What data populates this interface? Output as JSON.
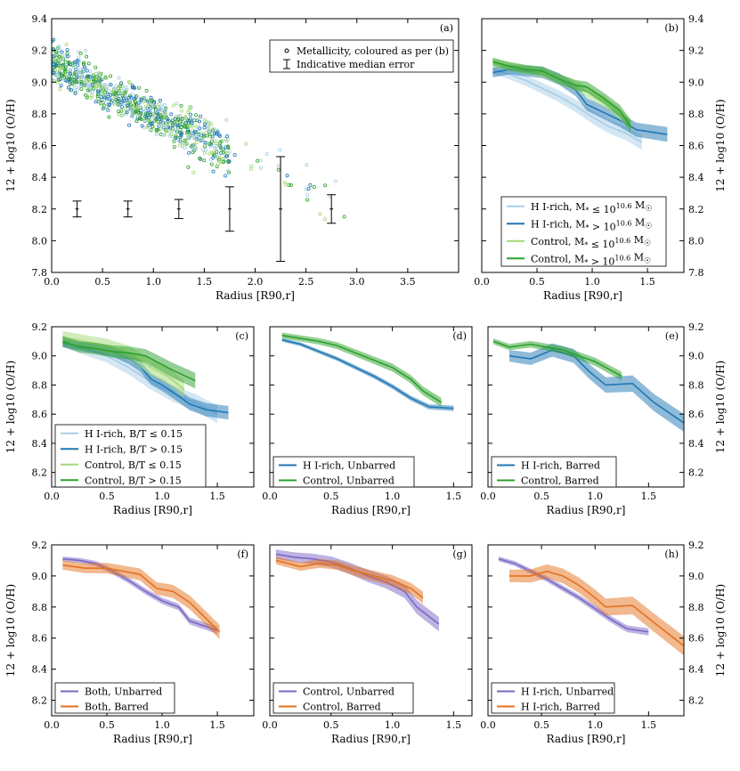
{
  "figure": {
    "title": ""
  },
  "colors": {
    "hi_low": "#a8cde8",
    "hi_high": "#1f77b4",
    "ctrl_low": "#a3d977",
    "ctrl_high": "#2ca02c",
    "purple": "#7b68c6",
    "orange": "#e5711e"
  },
  "chart_data": [
    {
      "id": "a",
      "label": "(a)",
      "type": "scatter",
      "xlabel": "Radius [R90,r]",
      "ylabel": "12 + log10 (O/H)",
      "xlim": [
        0,
        4.0
      ],
      "ylim": [
        7.8,
        9.4
      ],
      "xticks": [
        "0.0",
        "0.5",
        "1.0",
        "1.5",
        "2.0",
        "2.5",
        "3.0",
        "3.5"
      ],
      "yticks": [
        "7.8",
        "8.0",
        "8.2",
        "8.4",
        "8.6",
        "8.8",
        "9.0",
        "9.2",
        "9.4"
      ],
      "legend": [
        "Metallicity, coloured as per (b)",
        "Indicative median error"
      ],
      "errorbars": [
        {
          "x": 0.25,
          "y": 8.2,
          "err": 0.05
        },
        {
          "x": 0.75,
          "y": 8.2,
          "err": 0.05
        },
        {
          "x": 1.25,
          "y": 8.2,
          "err": 0.06
        },
        {
          "x": 1.75,
          "y": 8.2,
          "err": 0.14
        },
        {
          "x": 2.25,
          "y": 8.2,
          "err": 0.33
        },
        {
          "x": 2.75,
          "y": 8.2,
          "err": 0.09
        }
      ]
    },
    {
      "id": "b",
      "label": "(b)",
      "type": "line",
      "xlabel": "Radius [R90,r]",
      "ylabel": "12 + log10 (O/H)",
      "xlim": [
        0,
        1.83
      ],
      "ylim": [
        7.8,
        9.4
      ],
      "xticks": [
        "0.0",
        "0.5",
        "1.0",
        "1.5"
      ],
      "yticks": [
        "7.8",
        "8.0",
        "8.2",
        "8.4",
        "8.6",
        "8.8",
        "9.0",
        "9.2",
        "9.4"
      ],
      "series": [
        {
          "name": "H I-rich, M* ≤ 10^10.6 M☉",
          "color": "hi_low",
          "x": [
            0.1,
            0.25,
            0.4,
            0.55,
            0.7,
            0.85,
            1.0,
            1.15,
            1.3,
            1.45
          ],
          "y": [
            9.08,
            9.05,
            9.01,
            8.96,
            8.91,
            8.85,
            8.78,
            8.72,
            8.68,
            8.62
          ],
          "err": 0.03
        },
        {
          "name": "H I-rich, M* > 10^10.6 M☉",
          "color": "hi_high",
          "x": [
            0.1,
            0.25,
            0.4,
            0.55,
            0.7,
            0.85,
            0.95,
            1.1,
            1.25,
            1.4,
            1.68
          ],
          "y": [
            9.06,
            9.08,
            9.07,
            9.06,
            9.02,
            8.95,
            8.86,
            8.81,
            8.76,
            8.7,
            8.67
          ],
          "err": 0.03
        },
        {
          "name": "Control, M* ≤ 10^10.6 M☉",
          "color": "ctrl_low",
          "x": [
            0.1,
            0.25,
            0.4,
            0.55,
            0.7,
            0.85,
            0.95,
            1.1,
            1.25,
            1.35
          ],
          "y": [
            9.12,
            9.1,
            9.08,
            9.06,
            9.02,
            8.98,
            8.94,
            8.88,
            8.8,
            8.73
          ],
          "err": 0.025
        },
        {
          "name": "Control, M* > 10^10.6 M☉",
          "color": "ctrl_high",
          "x": [
            0.1,
            0.25,
            0.4,
            0.55,
            0.7,
            0.85,
            0.95,
            1.1,
            1.25,
            1.35
          ],
          "y": [
            9.13,
            9.1,
            9.08,
            9.07,
            9.02,
            8.98,
            8.97,
            8.9,
            8.82,
            8.72
          ],
          "err": 0.025
        }
      ]
    },
    {
      "id": "c",
      "label": "(c)",
      "type": "line",
      "xlabel": "Radius [R90,r]",
      "ylabel": "12 + log10 (O/H)",
      "xlim": [
        0,
        1.83
      ],
      "ylim": [
        8.1,
        9.2
      ],
      "xticks": [
        "0.0",
        "0.5",
        "1.0",
        "1.5"
      ],
      "yticks": [
        "8.2",
        "8.4",
        "8.6",
        "8.8",
        "9.0",
        "9.2"
      ],
      "series": [
        {
          "name": "H I-rich, B/T ≤ 0.15",
          "color": "hi_low",
          "x": [
            0.1,
            0.3,
            0.5,
            0.7,
            0.9,
            1.1,
            1.3,
            1.5
          ],
          "y": [
            9.1,
            9.05,
            9.0,
            8.92,
            8.82,
            8.74,
            8.68,
            8.6
          ],
          "err": 0.04
        },
        {
          "name": "H I-rich, B/T > 0.15",
          "color": "hi_high",
          "x": [
            0.1,
            0.25,
            0.4,
            0.55,
            0.7,
            0.8,
            0.9,
            1.0,
            1.1,
            1.25,
            1.4,
            1.6
          ],
          "y": [
            9.09,
            9.07,
            9.05,
            9.03,
            8.98,
            8.93,
            8.84,
            8.8,
            8.75,
            8.67,
            8.63,
            8.61
          ],
          "err": 0.03
        },
        {
          "name": "Control, B/T ≤ 0.15",
          "color": "ctrl_low",
          "x": [
            0.1,
            0.3,
            0.5,
            0.7,
            0.9,
            1.05,
            1.2
          ],
          "y": [
            9.13,
            9.1,
            9.07,
            9.02,
            8.92,
            8.86,
            8.77
          ],
          "err": 0.04
        },
        {
          "name": "Control, B/T > 0.15",
          "color": "ctrl_high",
          "x": [
            0.1,
            0.25,
            0.4,
            0.55,
            0.7,
            0.85,
            0.95,
            1.1,
            1.3
          ],
          "y": [
            9.1,
            9.06,
            9.05,
            9.03,
            9.02,
            9.0,
            8.96,
            8.9,
            8.83
          ],
          "err": 0.035
        }
      ]
    },
    {
      "id": "d",
      "label": "(d)",
      "type": "line",
      "xlabel": "Radius [R90,r]",
      "ylabel": "",
      "xlim": [
        0,
        1.65
      ],
      "ylim": [
        8.1,
        9.2
      ],
      "xticks": [
        "0.0",
        "0.5",
        "1.0",
        "1.5"
      ],
      "yticks": [],
      "series": [
        {
          "name": "H I-rich, Unbarred",
          "color": "hi_high",
          "x": [
            0.1,
            0.25,
            0.4,
            0.55,
            0.7,
            0.85,
            1.0,
            1.15,
            1.3,
            1.5
          ],
          "y": [
            9.11,
            9.08,
            9.03,
            8.98,
            8.92,
            8.86,
            8.79,
            8.71,
            8.65,
            8.64
          ],
          "err": 0.012
        },
        {
          "name": "Control, Unbarred",
          "color": "ctrl_high",
          "x": [
            0.1,
            0.25,
            0.4,
            0.55,
            0.7,
            0.85,
            1.0,
            1.15,
            1.25,
            1.4
          ],
          "y": [
            9.14,
            9.12,
            9.1,
            9.07,
            9.02,
            8.97,
            8.92,
            8.84,
            8.76,
            8.68
          ],
          "err": 0.02
        }
      ]
    },
    {
      "id": "e",
      "label": "(e)",
      "type": "line",
      "xlabel": "Radius [R90,r]",
      "ylabel": "12 + log10 (O/H)",
      "xlim": [
        0,
        1.83
      ],
      "ylim": [
        8.1,
        9.2
      ],
      "xticks": [
        "0.0",
        "0.5",
        "1.0",
        "1.5"
      ],
      "yticks": [
        "8.2",
        "8.4",
        "8.6",
        "8.8",
        "9.0",
        "9.2"
      ],
      "series": [
        {
          "name": "H I-rich, Barred",
          "color": "hi_high",
          "x": [
            0.2,
            0.4,
            0.6,
            0.8,
            0.95,
            1.1,
            1.35,
            1.55,
            1.83
          ],
          "y": [
            9.0,
            8.98,
            9.04,
            9.0,
            8.89,
            8.8,
            8.81,
            8.68,
            8.54
          ],
          "err": 0.04
        },
        {
          "name": "Control, Barred",
          "color": "ctrl_high",
          "x": [
            0.05,
            0.2,
            0.4,
            0.55,
            0.7,
            0.85,
            1.0,
            1.15,
            1.25
          ],
          "y": [
            9.1,
            9.06,
            9.08,
            9.06,
            9.04,
            9.0,
            8.96,
            8.9,
            8.86
          ],
          "err": 0.02
        }
      ]
    },
    {
      "id": "f",
      "label": "(f)",
      "type": "line",
      "xlabel": "Radius [R90,r]",
      "ylabel": "12 + log10 (O/H)",
      "xlim": [
        0,
        1.83
      ],
      "ylim": [
        8.1,
        9.2
      ],
      "xticks": [
        "0.0",
        "0.5",
        "1.0",
        "1.5"
      ],
      "yticks": [
        "8.2",
        "8.4",
        "8.6",
        "8.8",
        "9.0",
        "9.2"
      ],
      "series": [
        {
          "name": "Both, Unbarred",
          "color": "purple",
          "x": [
            0.1,
            0.25,
            0.4,
            0.55,
            0.7,
            0.85,
            1.0,
            1.15,
            1.25,
            1.5
          ],
          "y": [
            9.11,
            9.1,
            9.08,
            9.03,
            8.97,
            8.9,
            8.84,
            8.8,
            8.71,
            8.65
          ],
          "err": 0.015
        },
        {
          "name": "Both, Barred",
          "color": "orange",
          "x": [
            0.1,
            0.3,
            0.5,
            0.65,
            0.8,
            0.95,
            1.1,
            1.25,
            1.52
          ],
          "y": [
            9.07,
            9.05,
            9.05,
            9.03,
            9.01,
            8.92,
            8.9,
            8.83,
            8.64
          ],
          "err": 0.03
        }
      ]
    },
    {
      "id": "g",
      "label": "(g)",
      "type": "line",
      "xlabel": "Radius [R90,r]",
      "ylabel": "",
      "xlim": [
        0,
        1.65
      ],
      "ylim": [
        8.1,
        9.2
      ],
      "xticks": [
        "0.0",
        "0.5",
        "1.0",
        "1.5"
      ],
      "yticks": [],
      "series": [
        {
          "name": "Control, Unbarred",
          "color": "purple",
          "x": [
            0.05,
            0.2,
            0.35,
            0.5,
            0.65,
            0.8,
            0.95,
            1.1,
            1.2,
            1.38
          ],
          "y": [
            9.14,
            9.12,
            9.11,
            9.09,
            9.05,
            9.0,
            8.96,
            8.9,
            8.8,
            8.69
          ],
          "err": 0.03
        },
        {
          "name": "Control, Barred",
          "color": "orange",
          "x": [
            0.05,
            0.25,
            0.4,
            0.55,
            0.7,
            0.85,
            1.0,
            1.15,
            1.25
          ],
          "y": [
            9.1,
            9.06,
            9.08,
            9.07,
            9.03,
            9.0,
            8.97,
            8.92,
            8.86
          ],
          "err": 0.025
        }
      ]
    },
    {
      "id": "h",
      "label": "(h)",
      "type": "line",
      "xlabel": "Radius [R90,r]",
      "ylabel": "12 + log10 (O/H)",
      "xlim": [
        0,
        1.83
      ],
      "ylim": [
        8.1,
        9.2
      ],
      "xticks": [
        "0.0",
        "0.5",
        "1.0",
        "1.5"
      ],
      "yticks": [
        "8.2",
        "8.4",
        "8.6",
        "8.8",
        "9.0",
        "9.2"
      ],
      "series": [
        {
          "name": "H I-rich, Unbarred",
          "color": "purple",
          "x": [
            0.1,
            0.25,
            0.4,
            0.55,
            0.7,
            0.85,
            1.0,
            1.15,
            1.3,
            1.5
          ],
          "y": [
            9.11,
            9.08,
            9.03,
            8.98,
            8.92,
            8.86,
            8.79,
            8.72,
            8.66,
            8.64
          ],
          "err": 0.015
        },
        {
          "name": "H I-rich, Barred",
          "color": "orange",
          "x": [
            0.2,
            0.4,
            0.55,
            0.7,
            0.85,
            1.0,
            1.1,
            1.35,
            1.55,
            1.83
          ],
          "y": [
            9.0,
            9.0,
            9.03,
            9.0,
            8.94,
            8.86,
            8.8,
            8.81,
            8.7,
            8.55
          ],
          "err": 0.04
        }
      ]
    }
  ]
}
